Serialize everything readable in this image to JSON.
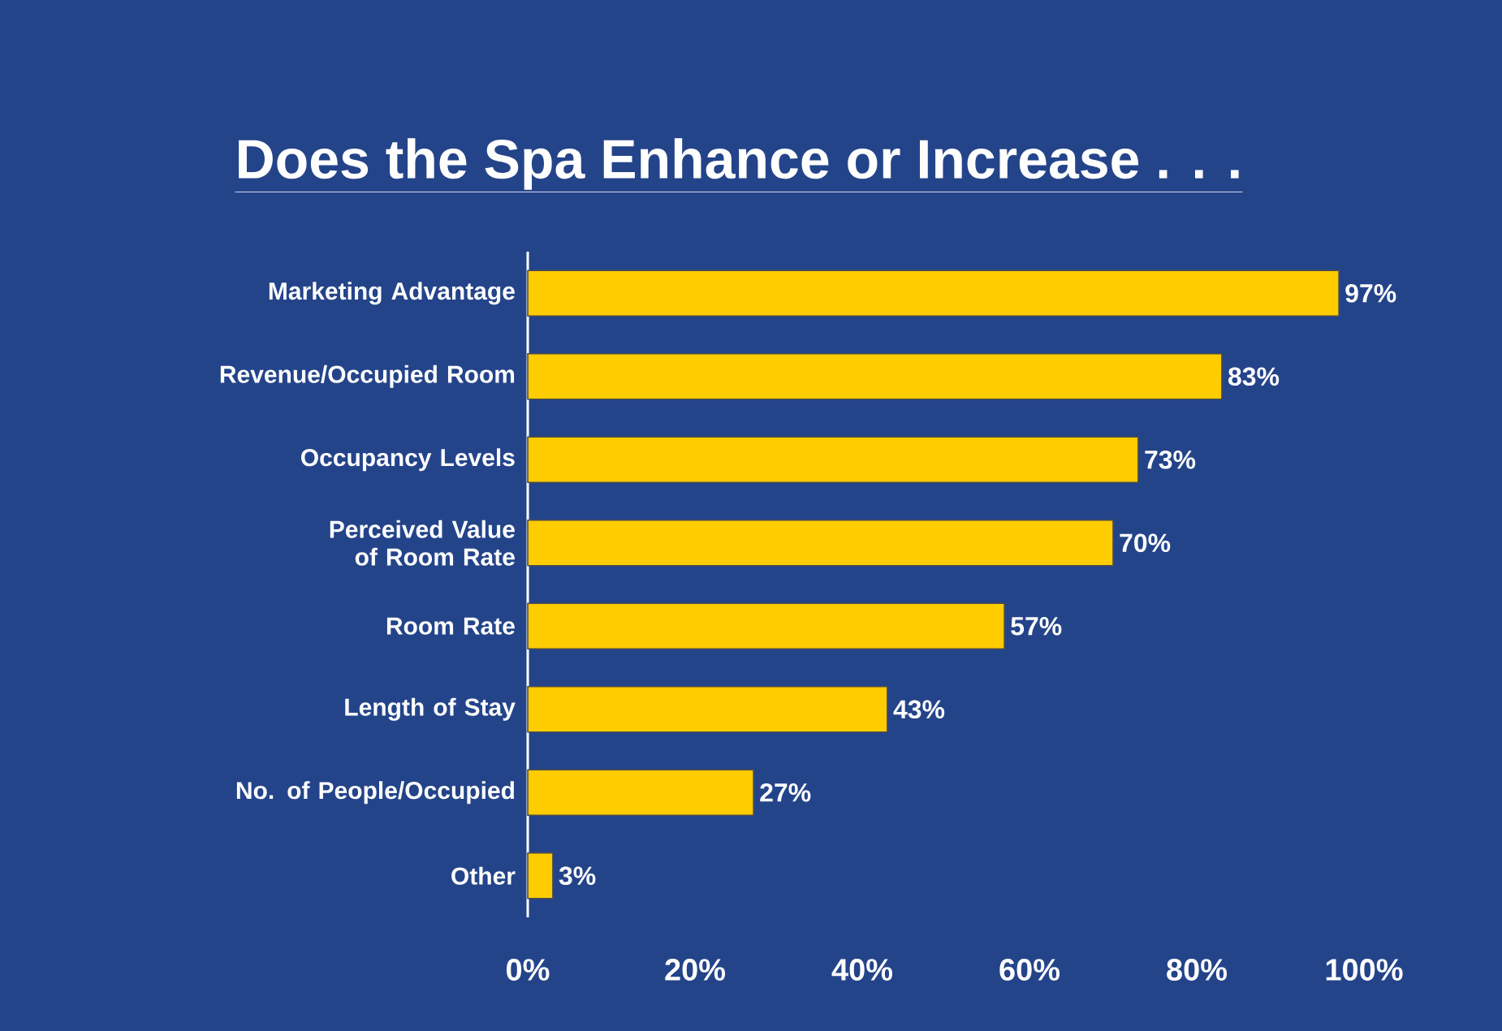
{
  "chart_data": {
    "type": "bar",
    "orientation": "horizontal",
    "title": "Does the Spa Enhance or Increase . . .",
    "categories": [
      "Marketing Advantage",
      "Revenue/Occupied Room",
      "Occupancy Levels",
      "Perceived Value of Room Rate",
      "Room Rate",
      "Length of Stay",
      "No. of People/Occupied",
      "Other"
    ],
    "values": [
      97,
      83,
      73,
      70,
      57,
      43,
      27,
      3
    ],
    "value_labels": [
      "97%",
      "83%",
      "73%",
      "70%",
      "57%",
      "43%",
      "27%",
      "3%"
    ],
    "color": "#ffcc00",
    "xlim": [
      0,
      100
    ],
    "xticks": [
      {
        "value": 0,
        "label": "0%"
      },
      {
        "value": 20,
        "label": "20%"
      },
      {
        "value": 40,
        "label": "40%"
      },
      {
        "value": 60,
        "label": "60%"
      },
      {
        "value": 80,
        "label": "80%"
      },
      {
        "value": 100,
        "label": "100%"
      }
    ],
    "grid": false
  }
}
